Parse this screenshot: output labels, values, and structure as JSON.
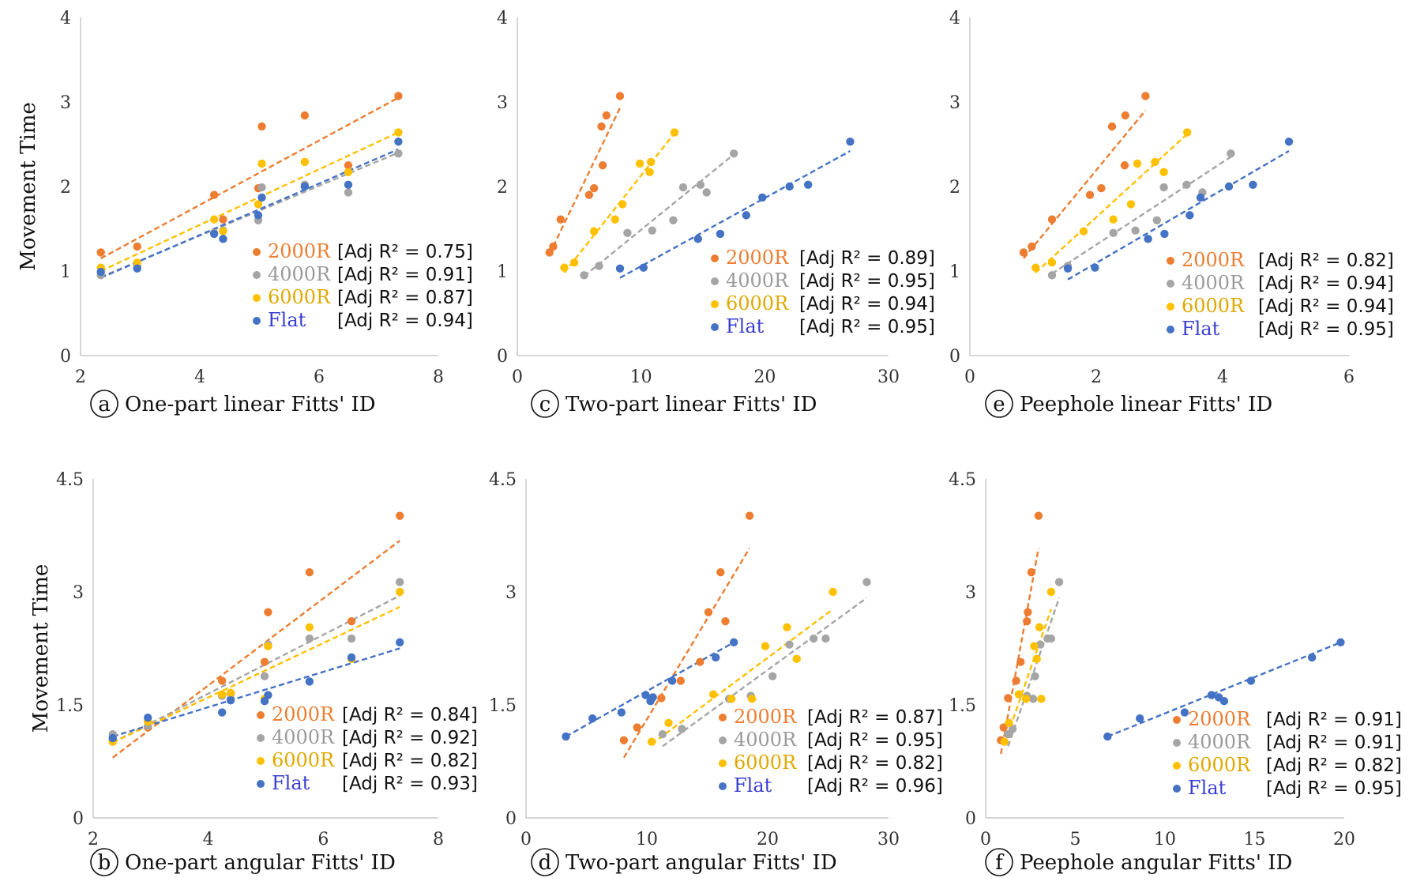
{
  "series_styles": [
    {
      "name": "2000R",
      "point_color": "#ED7D31",
      "legend_text_color": "#ED7D31"
    },
    {
      "name": "4000R",
      "point_color": "#A5A5A5",
      "legend_text_color": "#9A9A9A"
    },
    {
      "name": "6000R",
      "point_color": "#FFC000",
      "legend_text_color": "#E0A800"
    },
    {
      "name": "Flat",
      "point_color": "#4472C4",
      "legend_text_color": "#3A3FD0"
    }
  ],
  "chart_data": [
    {
      "type": "scatter",
      "letter": "a",
      "xlabel": "One-part linear Fitts' ID",
      "ylabel": "Movement Time",
      "xlim": [
        2,
        8
      ],
      "ylim": [
        0,
        4
      ],
      "xticks": [
        "2",
        "4",
        "6",
        "8"
      ],
      "yticks": [
        "0",
        "1",
        "2",
        "3",
        "4"
      ],
      "series": [
        {
          "name": "2000R",
          "r2": "[Adj R² = 0.75]",
          "x": [
            2.34,
            2.95,
            4.24,
            4.39,
            4.98,
            5.04,
            5.76,
            6.49,
            7.33
          ],
          "y": [
            1.22,
            1.29,
            1.9,
            1.61,
            1.98,
            2.71,
            2.84,
            2.25,
            3.07
          ],
          "fit": [
            [
              2.34,
              1.15
            ],
            [
              7.33,
              3.05
            ]
          ]
        },
        {
          "name": "4000R",
          "r2": "[Adj R² = 0.91]",
          "x": [
            2.34,
            2.95,
            4.24,
            4.39,
            4.98,
            5.04,
            5.76,
            6.49,
            7.33
          ],
          "y": [
            0.95,
            1.06,
            1.45,
            1.48,
            1.6,
            1.99,
            2.02,
            1.93,
            2.39
          ],
          "fit": [
            [
              2.34,
              0.93
            ],
            [
              7.33,
              2.4
            ]
          ]
        },
        {
          "name": "6000R",
          "r2": "[Adj R² = 0.87]",
          "x": [
            2.34,
            2.95,
            4.24,
            4.39,
            4.98,
            5.04,
            5.76,
            6.49,
            7.33
          ],
          "y": [
            1.04,
            1.1,
            1.61,
            1.47,
            1.79,
            2.27,
            2.29,
            2.17,
            2.64
          ],
          "fit": [
            [
              2.34,
              1.0
            ],
            [
              7.33,
              2.64
            ]
          ]
        },
        {
          "name": "Flat",
          "r2": "[Adj R² = 0.94]",
          "x": [
            2.34,
            2.95,
            4.24,
            4.39,
            4.98,
            5.04,
            5.76,
            6.49,
            7.33
          ],
          "y": [
            0.99,
            1.03,
            1.44,
            1.38,
            1.66,
            1.87,
            2.0,
            2.02,
            2.53
          ],
          "fit": [
            [
              2.34,
              0.92
            ],
            [
              7.33,
              2.44
            ]
          ]
        }
      ]
    },
    {
      "type": "scatter",
      "letter": "c",
      "xlabel": "Two-part linear Fitts' ID",
      "xlim": [
        0,
        30
      ],
      "ylim": [
        0,
        4
      ],
      "xticks": [
        "0",
        "10",
        "20",
        "30"
      ],
      "yticks": [
        "0",
        "1",
        "2",
        "3",
        "4"
      ],
      "series": [
        {
          "name": "2000R",
          "r2": "[Adj R² = 0.89]",
          "x": [
            2.6,
            2.9,
            3.5,
            5.8,
            6.2,
            6.8,
            6.9,
            7.2,
            8.3
          ],
          "y": [
            1.22,
            1.29,
            1.61,
            1.9,
            1.98,
            2.71,
            2.25,
            2.84,
            3.07
          ],
          "fit": [
            [
              2.6,
              1.2
            ],
            [
              8.3,
              2.93
            ]
          ]
        },
        {
          "name": "4000R",
          "r2": "[Adj R² = 0.95]",
          "x": [
            5.4,
            6.6,
            8.9,
            10.9,
            12.6,
            13.4,
            14.8,
            15.3,
            17.5
          ],
          "y": [
            0.95,
            1.06,
            1.45,
            1.48,
            1.6,
            1.99,
            2.02,
            1.93,
            2.39
          ],
          "fit": [
            [
              5.4,
              0.94
            ],
            [
              17.5,
              2.38
            ]
          ]
        },
        {
          "name": "6000R",
          "r2": "[Adj R² = 0.94]",
          "x": [
            3.8,
            4.6,
            6.2,
            7.9,
            8.5,
            9.9,
            10.7,
            10.8,
            12.7
          ],
          "y": [
            1.04,
            1.1,
            1.47,
            1.61,
            1.79,
            2.27,
            2.17,
            2.29,
            2.64
          ],
          "fit": [
            [
              3.8,
              0.98
            ],
            [
              12.7,
              2.63
            ]
          ]
        },
        {
          "name": "Flat",
          "r2": "[Adj R² = 0.95]",
          "x": [
            8.3,
            10.2,
            14.6,
            16.4,
            18.5,
            19.8,
            22.0,
            23.5,
            26.9
          ],
          "y": [
            1.03,
            1.04,
            1.38,
            1.44,
            1.66,
            1.87,
            2.0,
            2.02,
            2.53
          ],
          "fit": [
            [
              8.3,
              0.92
            ],
            [
              26.9,
              2.42
            ]
          ]
        }
      ]
    },
    {
      "type": "scatter",
      "letter": "e",
      "xlabel": "Peephole linear Fitts' ID",
      "xlim": [
        0,
        6
      ],
      "ylim": [
        0,
        4
      ],
      "xticks": [
        "0",
        "2",
        "4",
        "6"
      ],
      "yticks": [
        "0",
        "1",
        "2",
        "3",
        "4"
      ],
      "series": [
        {
          "name": "2000R",
          "r2": "[Adj R² = 0.82]",
          "x": [
            0.85,
            0.98,
            1.3,
            1.9,
            2.08,
            2.25,
            2.45,
            2.46,
            2.78
          ],
          "y": [
            1.22,
            1.29,
            1.61,
            1.9,
            1.98,
            2.71,
            2.25,
            2.84,
            3.07
          ],
          "fit": [
            [
              0.85,
              1.15
            ],
            [
              2.78,
              2.9
            ]
          ]
        },
        {
          "name": "4000R",
          "r2": "[Adj R² = 0.94]",
          "x": [
            1.3,
            1.55,
            2.27,
            2.62,
            2.96,
            3.07,
            3.43,
            3.68,
            4.13
          ],
          "y": [
            0.95,
            1.06,
            1.45,
            1.48,
            1.6,
            1.99,
            2.02,
            1.93,
            2.39
          ],
          "fit": [
            [
              1.3,
              0.97
            ],
            [
              4.13,
              2.35
            ]
          ]
        },
        {
          "name": "6000R",
          "r2": "[Adj R² = 0.94]",
          "x": [
            1.04,
            1.3,
            1.8,
            2.27,
            2.55,
            2.65,
            2.93,
            3.07,
            3.44
          ],
          "y": [
            1.04,
            1.1,
            1.47,
            1.61,
            1.79,
            2.27,
            2.29,
            2.17,
            2.64
          ],
          "fit": [
            [
              1.04,
              0.98
            ],
            [
              3.44,
              2.62
            ]
          ]
        },
        {
          "name": "Flat",
          "r2": "[Adj R² = 0.95]",
          "x": [
            1.55,
            1.98,
            2.82,
            3.08,
            3.48,
            3.65,
            4.1,
            4.48,
            5.05
          ],
          "y": [
            1.03,
            1.04,
            1.38,
            1.44,
            1.66,
            1.87,
            2.0,
            2.02,
            2.53
          ],
          "fit": [
            [
              1.55,
              0.9
            ],
            [
              5.05,
              2.42
            ]
          ]
        }
      ]
    },
    {
      "type": "scatter",
      "letter": "b",
      "xlabel": "One-part angular Fitts' ID",
      "ylabel": "Movement Time",
      "xlim": [
        2,
        8
      ],
      "ylim": [
        0,
        4.5
      ],
      "xticks": [
        "2",
        "4",
        "6",
        "8"
      ],
      "yticks": [
        "0",
        "1.5",
        "3",
        "4.5"
      ],
      "series": [
        {
          "name": "2000R",
          "r2": "[Adj R² = 0.84]",
          "x": [
            2.34,
            2.95,
            4.24,
            4.39,
            4.98,
            5.04,
            5.76,
            6.49,
            7.33
          ],
          "y": [
            1.03,
            1.2,
            1.82,
            1.65,
            2.07,
            2.73,
            3.26,
            2.61,
            4.01
          ],
          "fit": [
            [
              2.34,
              0.8
            ],
            [
              7.33,
              3.68
            ]
          ]
        },
        {
          "name": "4000R",
          "r2": "[Adj R² = 0.92]",
          "x": [
            2.34,
            2.95,
            4.24,
            4.39,
            4.98,
            5.04,
            5.76,
            6.49,
            7.33
          ],
          "y": [
            1.11,
            1.22,
            1.62,
            1.58,
            1.88,
            2.3,
            2.38,
            2.38,
            3.13
          ],
          "fit": [
            [
              2.34,
              1.0
            ],
            [
              7.33,
              2.95
            ]
          ]
        },
        {
          "name": "6000R",
          "r2": "[Adj R² = 0.82]",
          "x": [
            2.34,
            2.95,
            4.24,
            4.39,
            4.98,
            5.04,
            5.76,
            6.49,
            7.33
          ],
          "y": [
            1.01,
            1.28,
            1.64,
            1.66,
            1.58,
            2.28,
            2.53,
            2.11,
            3.0
          ],
          "fit": [
            [
              2.34,
              1.0
            ],
            [
              7.33,
              2.8
            ]
          ]
        },
        {
          "name": "Flat",
          "r2": "[Adj R² = 0.93]",
          "x": [
            2.34,
            2.95,
            4.24,
            4.39,
            4.98,
            5.04,
            5.76,
            6.49,
            7.33
          ],
          "y": [
            1.06,
            1.33,
            1.4,
            1.56,
            1.55,
            1.63,
            1.81,
            2.13,
            2.33
          ],
          "fit": [
            [
              2.34,
              1.08
            ],
            [
              7.33,
              2.25
            ]
          ]
        }
      ]
    },
    {
      "type": "scatter",
      "letter": "d",
      "xlabel": "Two-part angular Fitts' ID",
      "xlim": [
        0,
        30
      ],
      "ylim": [
        0,
        4.5
      ],
      "xticks": [
        "0",
        "10",
        "20",
        "30"
      ],
      "yticks": [
        "0",
        "1.5",
        "3",
        "4.5"
      ],
      "series": [
        {
          "name": "2000R",
          "r2": "[Adj R² = 0.87]",
          "x": [
            8.1,
            9.2,
            11.2,
            12.8,
            14.4,
            15.1,
            16.1,
            16.5,
            18.5
          ],
          "y": [
            1.03,
            1.2,
            1.59,
            1.82,
            2.07,
            2.73,
            3.26,
            2.61,
            4.01
          ],
          "fit": [
            [
              8.1,
              0.8
            ],
            [
              18.5,
              3.58
            ]
          ]
        },
        {
          "name": "4000R",
          "r2": "[Adj R² = 0.95]",
          "x": [
            11.3,
            12.9,
            16.8,
            18.6,
            20.4,
            21.8,
            23.8,
            24.8,
            28.2
          ],
          "y": [
            1.11,
            1.18,
            1.58,
            1.62,
            1.88,
            2.3,
            2.38,
            2.38,
            3.13
          ],
          "fit": [
            [
              11.3,
              0.95
            ],
            [
              28.2,
              2.92
            ]
          ]
        },
        {
          "name": "6000R",
          "r2": "[Adj R² = 0.82]",
          "x": [
            10.4,
            11.8,
            15.5,
            17.0,
            18.7,
            19.8,
            21.6,
            22.4,
            25.4
          ],
          "y": [
            1.01,
            1.26,
            1.64,
            1.58,
            1.58,
            2.28,
            2.53,
            2.11,
            3.0
          ],
          "fit": [
            [
              10.4,
              0.98
            ],
            [
              25.4,
              2.77
            ]
          ]
        },
        {
          "name": "Flat",
          "r2": "[Adj R² = 0.96]",
          "x": [
            3.3,
            5.5,
            7.9,
            9.9,
            10.3,
            10.5,
            12.1,
            15.7,
            17.2
          ],
          "y": [
            1.08,
            1.32,
            1.4,
            1.63,
            1.55,
            1.6,
            1.82,
            2.13,
            2.33
          ],
          "fit": [
            [
              3.3,
              1.08
            ],
            [
              17.2,
              2.33
            ]
          ]
        }
      ]
    },
    {
      "type": "scatter",
      "letter": "f",
      "xlabel": "Peephole angular Fitts' ID",
      "xlim": [
        0,
        20
      ],
      "ylim": [
        0,
        4.5
      ],
      "xticks": [
        "0",
        "5",
        "10",
        "15",
        "20"
      ],
      "yticks": [
        "0",
        "1.5",
        "3",
        "4.5"
      ],
      "series": [
        {
          "name": "2000R",
          "r2": "[Adj R² = 0.91]",
          "x": [
            0.85,
            1.0,
            1.25,
            1.7,
            1.95,
            2.3,
            2.35,
            2.55,
            2.95
          ],
          "y": [
            1.03,
            1.2,
            1.59,
            1.82,
            2.07,
            2.61,
            2.73,
            3.26,
            4.01
          ],
          "fit": [
            [
              0.85,
              0.85
            ],
            [
              2.95,
              3.58
            ]
          ]
        },
        {
          "name": "4000R",
          "r2": "[Adj R² = 0.91]",
          "x": [
            1.25,
            1.5,
            2.3,
            2.65,
            2.75,
            3.05,
            3.45,
            3.65,
            4.1
          ],
          "y": [
            1.11,
            1.18,
            1.62,
            1.58,
            1.88,
            2.3,
            2.38,
            2.38,
            3.13
          ],
          "fit": [
            [
              1.25,
              0.95
            ],
            [
              4.1,
              2.92
            ]
          ]
        },
        {
          "name": "6000R",
          "r2": "[Adj R² = 0.82]",
          "x": [
            1.05,
            1.3,
            1.85,
            2.25,
            2.7,
            2.85,
            3.0,
            3.1,
            3.65
          ],
          "y": [
            1.01,
            1.26,
            1.64,
            1.58,
            2.28,
            2.11,
            2.53,
            1.58,
            3.0
          ],
          "fit": [
            [
              1.05,
              0.98
            ],
            [
              3.65,
              2.77
            ]
          ]
        },
        {
          "name": "Flat",
          "r2": "[Adj R² = 0.95]",
          "x": [
            6.8,
            8.6,
            11.1,
            12.6,
            13.0,
            13.3,
            14.8,
            18.2,
            19.8
          ],
          "y": [
            1.08,
            1.32,
            1.4,
            1.63,
            1.6,
            1.55,
            1.82,
            2.13,
            2.33
          ],
          "fit": [
            [
              6.8,
              1.08
            ],
            [
              19.8,
              2.33
            ]
          ]
        }
      ]
    }
  ]
}
